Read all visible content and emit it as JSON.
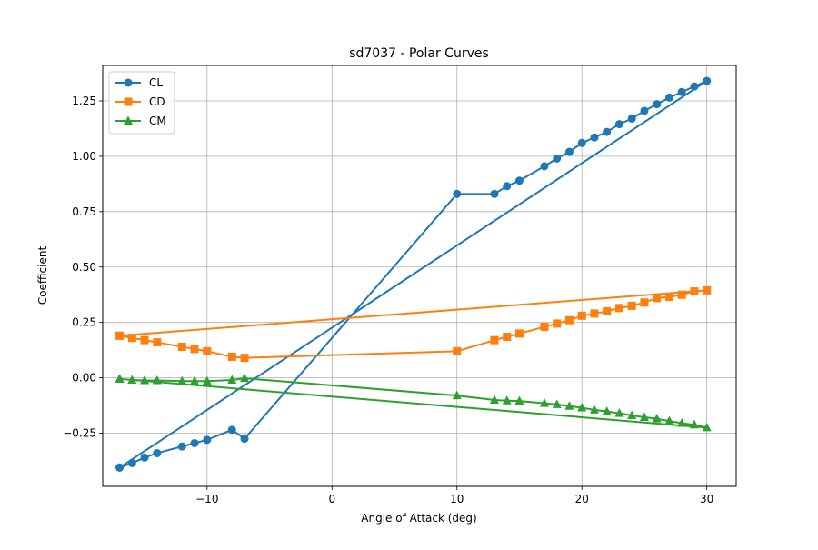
{
  "chart_data": {
    "type": "line",
    "title": "sd7037 - Polar Curves",
    "xlabel": "Angle of Attack (deg)",
    "ylabel": "Coefficient",
    "xlim": [
      -18.35,
      32.35
    ],
    "ylim": [
      -0.49,
      1.41
    ],
    "xticks": [
      -10,
      0,
      10,
      20,
      30
    ],
    "xtick_labels": [
      "−10",
      "0",
      "10",
      "20",
      "30"
    ],
    "yticks": [
      -0.25,
      0.0,
      0.25,
      0.5,
      0.75,
      1.0,
      1.25
    ],
    "ytick_labels": [
      "−0.25",
      "0.00",
      "0.25",
      "0.50",
      "0.75",
      "1.00",
      "1.25"
    ],
    "grid": true,
    "legend_position": "top-left",
    "x": [
      -17,
      -16,
      -15,
      -14,
      -12,
      -11,
      -10,
      -8,
      -7,
      10,
      13,
      14,
      15,
      17,
      18,
      19,
      20,
      21,
      22,
      23,
      24,
      25,
      26,
      27,
      28,
      29,
      30,
      -17
    ],
    "series": [
      {
        "name": "CL",
        "color": "#1f77b4",
        "marker": "circle",
        "values": [
          -0.405,
          -0.385,
          -0.36,
          -0.34,
          -0.31,
          -0.295,
          -0.28,
          -0.235,
          -0.275,
          0.83,
          0.83,
          0.865,
          0.89,
          0.955,
          0.99,
          1.02,
          1.06,
          1.085,
          1.11,
          1.145,
          1.17,
          1.205,
          1.235,
          1.265,
          1.29,
          1.315,
          1.34,
          -0.405
        ]
      },
      {
        "name": "CD",
        "color": "#ff7f0e",
        "marker": "square",
        "values": [
          0.19,
          0.18,
          0.17,
          0.16,
          0.14,
          0.13,
          0.12,
          0.095,
          0.09,
          0.12,
          0.17,
          0.185,
          0.2,
          0.23,
          0.245,
          0.26,
          0.28,
          0.29,
          0.3,
          0.315,
          0.325,
          0.34,
          0.36,
          0.365,
          0.375,
          0.39,
          0.395,
          0.19
        ]
      },
      {
        "name": "CM",
        "color": "#2ca02c",
        "marker": "triangle",
        "values": [
          -0.005,
          -0.01,
          -0.012,
          -0.012,
          -0.015,
          -0.015,
          -0.015,
          -0.01,
          -0.002,
          -0.08,
          -0.1,
          -0.103,
          -0.105,
          -0.115,
          -0.12,
          -0.128,
          -0.135,
          -0.145,
          -0.152,
          -0.16,
          -0.17,
          -0.178,
          -0.185,
          -0.195,
          -0.205,
          -0.212,
          -0.225,
          -0.005
        ]
      }
    ]
  }
}
